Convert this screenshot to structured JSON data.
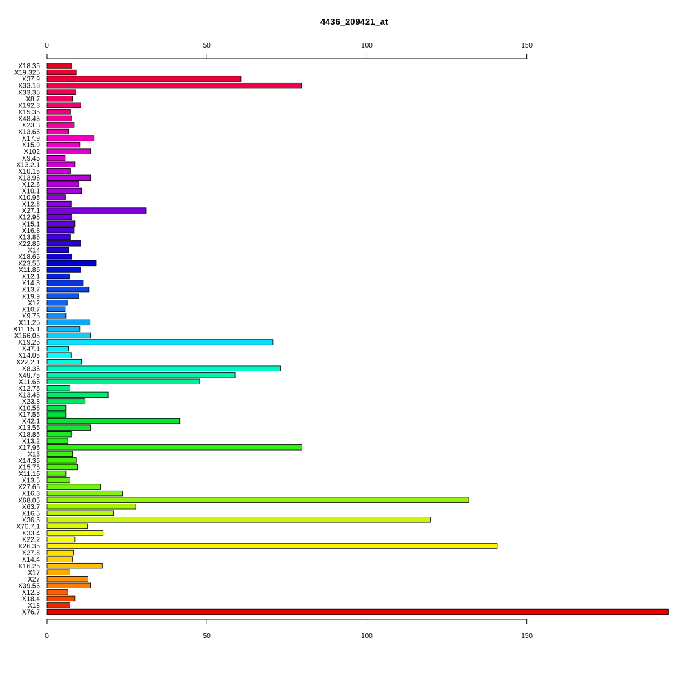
{
  "chart_data": {
    "type": "bar",
    "orientation": "horizontal",
    "title": "4436_209421_at",
    "xlabel": "",
    "ylabel": "",
    "xlim": [
      0,
      194
    ],
    "x_ticks": [
      0,
      50,
      100,
      150
    ],
    "tick_labels": [
      "0",
      "50",
      "100",
      "150"
    ],
    "grid": false,
    "legend": "none",
    "color_scheme": "rainbow",
    "categories": [
      "X18.35",
      "X19.325",
      "X37.9",
      "X33.18",
      "X33.35",
      "X8.7",
      "X192.3",
      "X15.35",
      "X48.45",
      "X23.3",
      "X13.65",
      "X17.9",
      "X15.9",
      "X102",
      "X9.45",
      "X13.2.1",
      "X10.15",
      "X13.95",
      "X12.6",
      "X10.1",
      "X10.95",
      "X12.8",
      "X27.1",
      "X12.95",
      "X15.1",
      "X16.8",
      "X13.85",
      "X22.85",
      "X14",
      "X18.65",
      "X23.55",
      "X11.85",
      "X12.1",
      "X14.8",
      "X13.7",
      "X19.9",
      "X12",
      "X10.7",
      "X9.75",
      "X11.25",
      "X11.15.1",
      "X166.05",
      "X19.25",
      "X47.1",
      "X14.05",
      "X22.2.1",
      "X8.35",
      "X49.75",
      "X11.65",
      "X12.75",
      "X13.45",
      "X23.8",
      "X10.55",
      "X17.55",
      "X42.1",
      "X13.55",
      "X18.85",
      "X13.2",
      "X17.95",
      "X13",
      "X14.35",
      "X15.75",
      "X11.15",
      "X13.5",
      "X27.65",
      "X16.3",
      "X68.05",
      "X63.7",
      "X16.5",
      "X36.5",
      "X76.7.1",
      "X33.4",
      "X22.2",
      "X26.35",
      "X27.8",
      "X14.4",
      "X16.25",
      "X17",
      "X27",
      "X39.55",
      "X12.3",
      "X18.4",
      "X18",
      "X76.7"
    ],
    "values": [
      7.8,
      9.3,
      60.7,
      79.6,
      9.1,
      8.1,
      10.6,
      7.4,
      7.8,
      8.6,
      6.8,
      14.8,
      10.3,
      13.7,
      5.8,
      8.8,
      7.4,
      13.7,
      9.9,
      10.9,
      5.9,
      7.6,
      31.0,
      7.8,
      8.8,
      8.6,
      7.4,
      10.6,
      6.8,
      7.8,
      15.5,
      10.6,
      7.2,
      11.4,
      13.1,
      9.9,
      6.3,
      5.8,
      6.0,
      13.5,
      10.3,
      13.7,
      70.6,
      6.8,
      7.6,
      10.9,
      73.1,
      58.8,
      47.8,
      7.2,
      19.2,
      12.0,
      6.0,
      6.0,
      41.5,
      13.7,
      7.6,
      6.5,
      79.8,
      8.1,
      9.3,
      9.6,
      6.0,
      7.2,
      16.7,
      23.6,
      131.8,
      27.8,
      20.8,
      119.8,
      12.6,
      17.6,
      8.8,
      140.8,
      8.3,
      8.1,
      17.3,
      7.2,
      12.8,
      13.7,
      6.5,
      8.8,
      7.2,
      194.3
    ]
  }
}
